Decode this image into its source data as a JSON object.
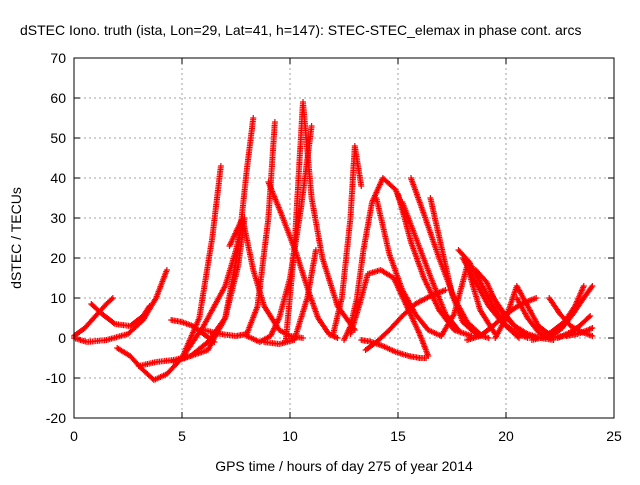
{
  "chart_data": {
    "type": "scatter",
    "title": "dSTEC Iono. truth (ista, Lon=29, Lat=41, h=147): STEC-STEC_elemax in phase cont. arcs",
    "xlabel": "GPS time / hours of day 275 of year 2014",
    "ylabel": "dSTEC  / TECUs",
    "xlim": [
      0,
      25
    ],
    "ylim": [
      -20,
      70
    ],
    "xticks": [
      0,
      5,
      10,
      15,
      20,
      25
    ],
    "yticks": [
      -20,
      -10,
      0,
      10,
      20,
      30,
      40,
      50,
      60,
      70
    ],
    "grid": true,
    "marker": "+",
    "series_color": "#ff0000",
    "series": [
      {
        "x": [
          0.0,
          0.5,
          1.0,
          1.5,
          1.8
        ],
        "y": [
          0.5,
          2.5,
          5.5,
          8.5,
          10.0
        ]
      },
      {
        "x": [
          0.8,
          1.3,
          1.9,
          2.6,
          3.2,
          3.5
        ],
        "y": [
          8.5,
          6.0,
          3.5,
          3.0,
          5.5,
          8.0
        ]
      },
      {
        "x": [
          0.0,
          0.6,
          1.5,
          2.5,
          3.2,
          3.8,
          4.3
        ],
        "y": [
          0.0,
          -1.0,
          -0.5,
          1.0,
          4.5,
          10.0,
          17.0
        ]
      },
      {
        "x": [
          2.0,
          2.6,
          3.1,
          3.7,
          4.3,
          5.0,
          5.8,
          6.4,
          6.8
        ],
        "y": [
          -2.5,
          -4.5,
          -7.5,
          -10.5,
          -9.0,
          -5.0,
          5.0,
          25.0,
          43.0
        ]
      },
      {
        "x": [
          3.0,
          3.8,
          4.6,
          5.4,
          6.2,
          7.0,
          7.6,
          8.0,
          8.3
        ],
        "y": [
          -7.0,
          -6.0,
          -5.5,
          -4.5,
          -3.0,
          5.0,
          22.0,
          42.0,
          55.0
        ]
      },
      {
        "x": [
          4.5,
          5.0,
          5.5,
          6.0,
          6.5
        ],
        "y": [
          4.5,
          4.0,
          3.0,
          1.0,
          -1.0
        ]
      },
      {
        "x": [
          5.0,
          5.5,
          6.0,
          6.5,
          7.0,
          7.5,
          7.8
        ],
        "y": [
          -5.0,
          -1.0,
          3.0,
          8.0,
          13.0,
          22.0,
          29.0
        ]
      },
      {
        "x": [
          4.6,
          5.4,
          6.2,
          7.0,
          7.6,
          7.9
        ],
        "y": [
          -6.0,
          -4.5,
          -1.0,
          5.0,
          18.0,
          30.0
        ]
      },
      {
        "x": [
          6.0,
          6.8,
          7.5,
          8.0,
          8.5,
          9.0,
          9.3
        ],
        "y": [
          2.0,
          1.0,
          0.5,
          1.0,
          8.0,
          30.0,
          54.0
        ]
      },
      {
        "x": [
          7.2,
          7.8,
          8.3,
          8.8,
          9.5,
          10.0,
          10.6
        ],
        "y": [
          23.0,
          30.0,
          17.0,
          8.0,
          2.0,
          0.5,
          0.0
        ]
      },
      {
        "x": [
          8.0,
          8.6,
          9.1,
          9.5,
          10.0,
          10.5,
          11.0
        ],
        "y": [
          0.5,
          -1.0,
          0.5,
          5.0,
          15.0,
          32.0,
          53.0
        ]
      },
      {
        "x": [
          9.0,
          9.6,
          10.3,
          10.9,
          11.3,
          11.8,
          12.2
        ],
        "y": [
          39.0,
          31.0,
          21.0,
          11.0,
          5.0,
          1.0,
          0.0
        ]
      },
      {
        "x": [
          9.8,
          10.2,
          10.6,
          11.0,
          11.5,
          12.2,
          13.0
        ],
        "y": [
          -1.0,
          22.0,
          59.0,
          35.0,
          20.0,
          8.0,
          2.0
        ]
      },
      {
        "x": [
          8.8,
          9.5,
          10.2,
          10.8,
          11.2
        ],
        "y": [
          -1.0,
          -1.5,
          -0.5,
          10.0,
          22.0
        ]
      },
      {
        "x": [
          12.0,
          12.4,
          12.8,
          13.0,
          13.3
        ],
        "y": [
          1.0,
          10.0,
          30.0,
          48.0,
          38.0
        ]
      },
      {
        "x": [
          12.5,
          12.8,
          13.1,
          13.4,
          13.8,
          14.3,
          14.9,
          15.3
        ],
        "y": [
          -0.5,
          3.0,
          10.0,
          22.0,
          34.0,
          40.0,
          37.0,
          31.0
        ]
      },
      {
        "x": [
          12.8,
          13.2,
          13.6,
          14.2,
          14.8,
          15.4,
          16.0,
          16.4
        ],
        "y": [
          1.0,
          8.0,
          16.0,
          17.0,
          15.0,
          8.0,
          1.0,
          -4.5
        ]
      },
      {
        "x": [
          13.3,
          13.8,
          14.3,
          14.9,
          15.5,
          16.0,
          16.3
        ],
        "y": [
          -0.5,
          -1.0,
          -2.0,
          -3.5,
          -4.5,
          -5.0,
          -5.0
        ]
      },
      {
        "x": [
          13.5,
          14.0,
          14.6,
          15.2,
          15.8,
          16.5,
          17.2
        ],
        "y": [
          -3.0,
          -1.0,
          2.0,
          5.5,
          8.5,
          10.5,
          12.0
        ]
      },
      {
        "x": [
          14.0,
          14.6,
          15.2,
          15.8,
          16.4,
          17.0
        ],
        "y": [
          35.0,
          21.0,
          12.0,
          6.0,
          2.0,
          0.5
        ]
      },
      {
        "x": [
          15.0,
          15.6,
          16.2,
          16.9,
          17.6,
          18.4
        ],
        "y": [
          36.0,
          24.0,
          15.0,
          7.0,
          2.0,
          0.5
        ]
      },
      {
        "x": [
          15.6,
          16.2,
          16.9,
          17.6,
          18.2,
          18.8
        ],
        "y": [
          40.0,
          31.0,
          20.0,
          10.0,
          4.0,
          1.0
        ]
      },
      {
        "x": [
          15.2,
          15.9,
          16.6,
          17.2,
          17.8
        ],
        "y": [
          34.0,
          24.0,
          14.0,
          6.0,
          2.0
        ]
      },
      {
        "x": [
          16.5,
          17.0,
          17.5,
          18.0,
          18.6,
          19.2
        ],
        "y": [
          35.0,
          23.0,
          11.0,
          4.0,
          1.0,
          0.0
        ]
      },
      {
        "x": [
          17.0,
          17.6,
          18.2,
          18.8,
          19.5
        ],
        "y": [
          0.5,
          6.0,
          18.0,
          7.0,
          1.0
        ]
      },
      {
        "x": [
          17.8,
          18.3,
          18.8,
          19.4,
          20.0,
          20.6
        ],
        "y": [
          22.0,
          19.0,
          14.0,
          8.0,
          3.0,
          0.0
        ]
      },
      {
        "x": [
          18.0,
          18.6,
          19.2,
          19.8,
          20.4,
          21.0
        ],
        "y": [
          20.0,
          14.0,
          8.0,
          4.0,
          1.5,
          0.0
        ]
      },
      {
        "x": [
          18.6,
          19.1,
          19.6,
          20.2,
          20.8,
          21.4
        ],
        "y": [
          17.0,
          14.0,
          8.0,
          4.0,
          1.0,
          0.0
        ]
      },
      {
        "x": [
          18.2,
          18.8,
          19.4,
          20.0,
          20.7,
          21.4
        ],
        "y": [
          -0.5,
          0.5,
          3.0,
          6.0,
          8.5,
          10.0
        ]
      },
      {
        "x": [
          19.3,
          19.8,
          20.4,
          21.0,
          21.6,
          22.2
        ],
        "y": [
          11.0,
          7.0,
          3.0,
          1.0,
          0.0,
          -0.5
        ]
      },
      {
        "x": [
          19.5,
          20.0,
          20.5,
          21.0,
          21.5,
          22.1
        ],
        "y": [
          0.0,
          5.0,
          13.0,
          8.0,
          3.0,
          0.5
        ]
      },
      {
        "x": [
          20.5,
          21.0,
          21.5,
          22.0,
          22.6,
          23.2
        ],
        "y": [
          10.0,
          5.0,
          1.5,
          0.0,
          0.5,
          2.0
        ]
      },
      {
        "x": [
          21.2,
          21.6,
          22.1,
          22.7,
          23.2,
          23.6
        ],
        "y": [
          -0.5,
          0.0,
          1.5,
          4.0,
          8.0,
          13.0
        ]
      },
      {
        "x": [
          21.6,
          22.1,
          22.6,
          23.1,
          23.6,
          24.0
        ],
        "y": [
          0.0,
          0.5,
          2.5,
          6.0,
          10.0,
          13.0
        ]
      },
      {
        "x": [
          22.0,
          22.5,
          23.0,
          23.5,
          24.0
        ],
        "y": [
          10.0,
          6.0,
          3.0,
          1.5,
          0.5
        ]
      },
      {
        "x": [
          22.4,
          22.9,
          23.4,
          23.9
        ],
        "y": [
          0.0,
          1.0,
          3.0,
          5.5
        ]
      },
      {
        "x": [
          22.8,
          23.3,
          23.8,
          24.0
        ],
        "y": [
          0.5,
          1.0,
          2.0,
          2.5
        ]
      }
    ]
  }
}
